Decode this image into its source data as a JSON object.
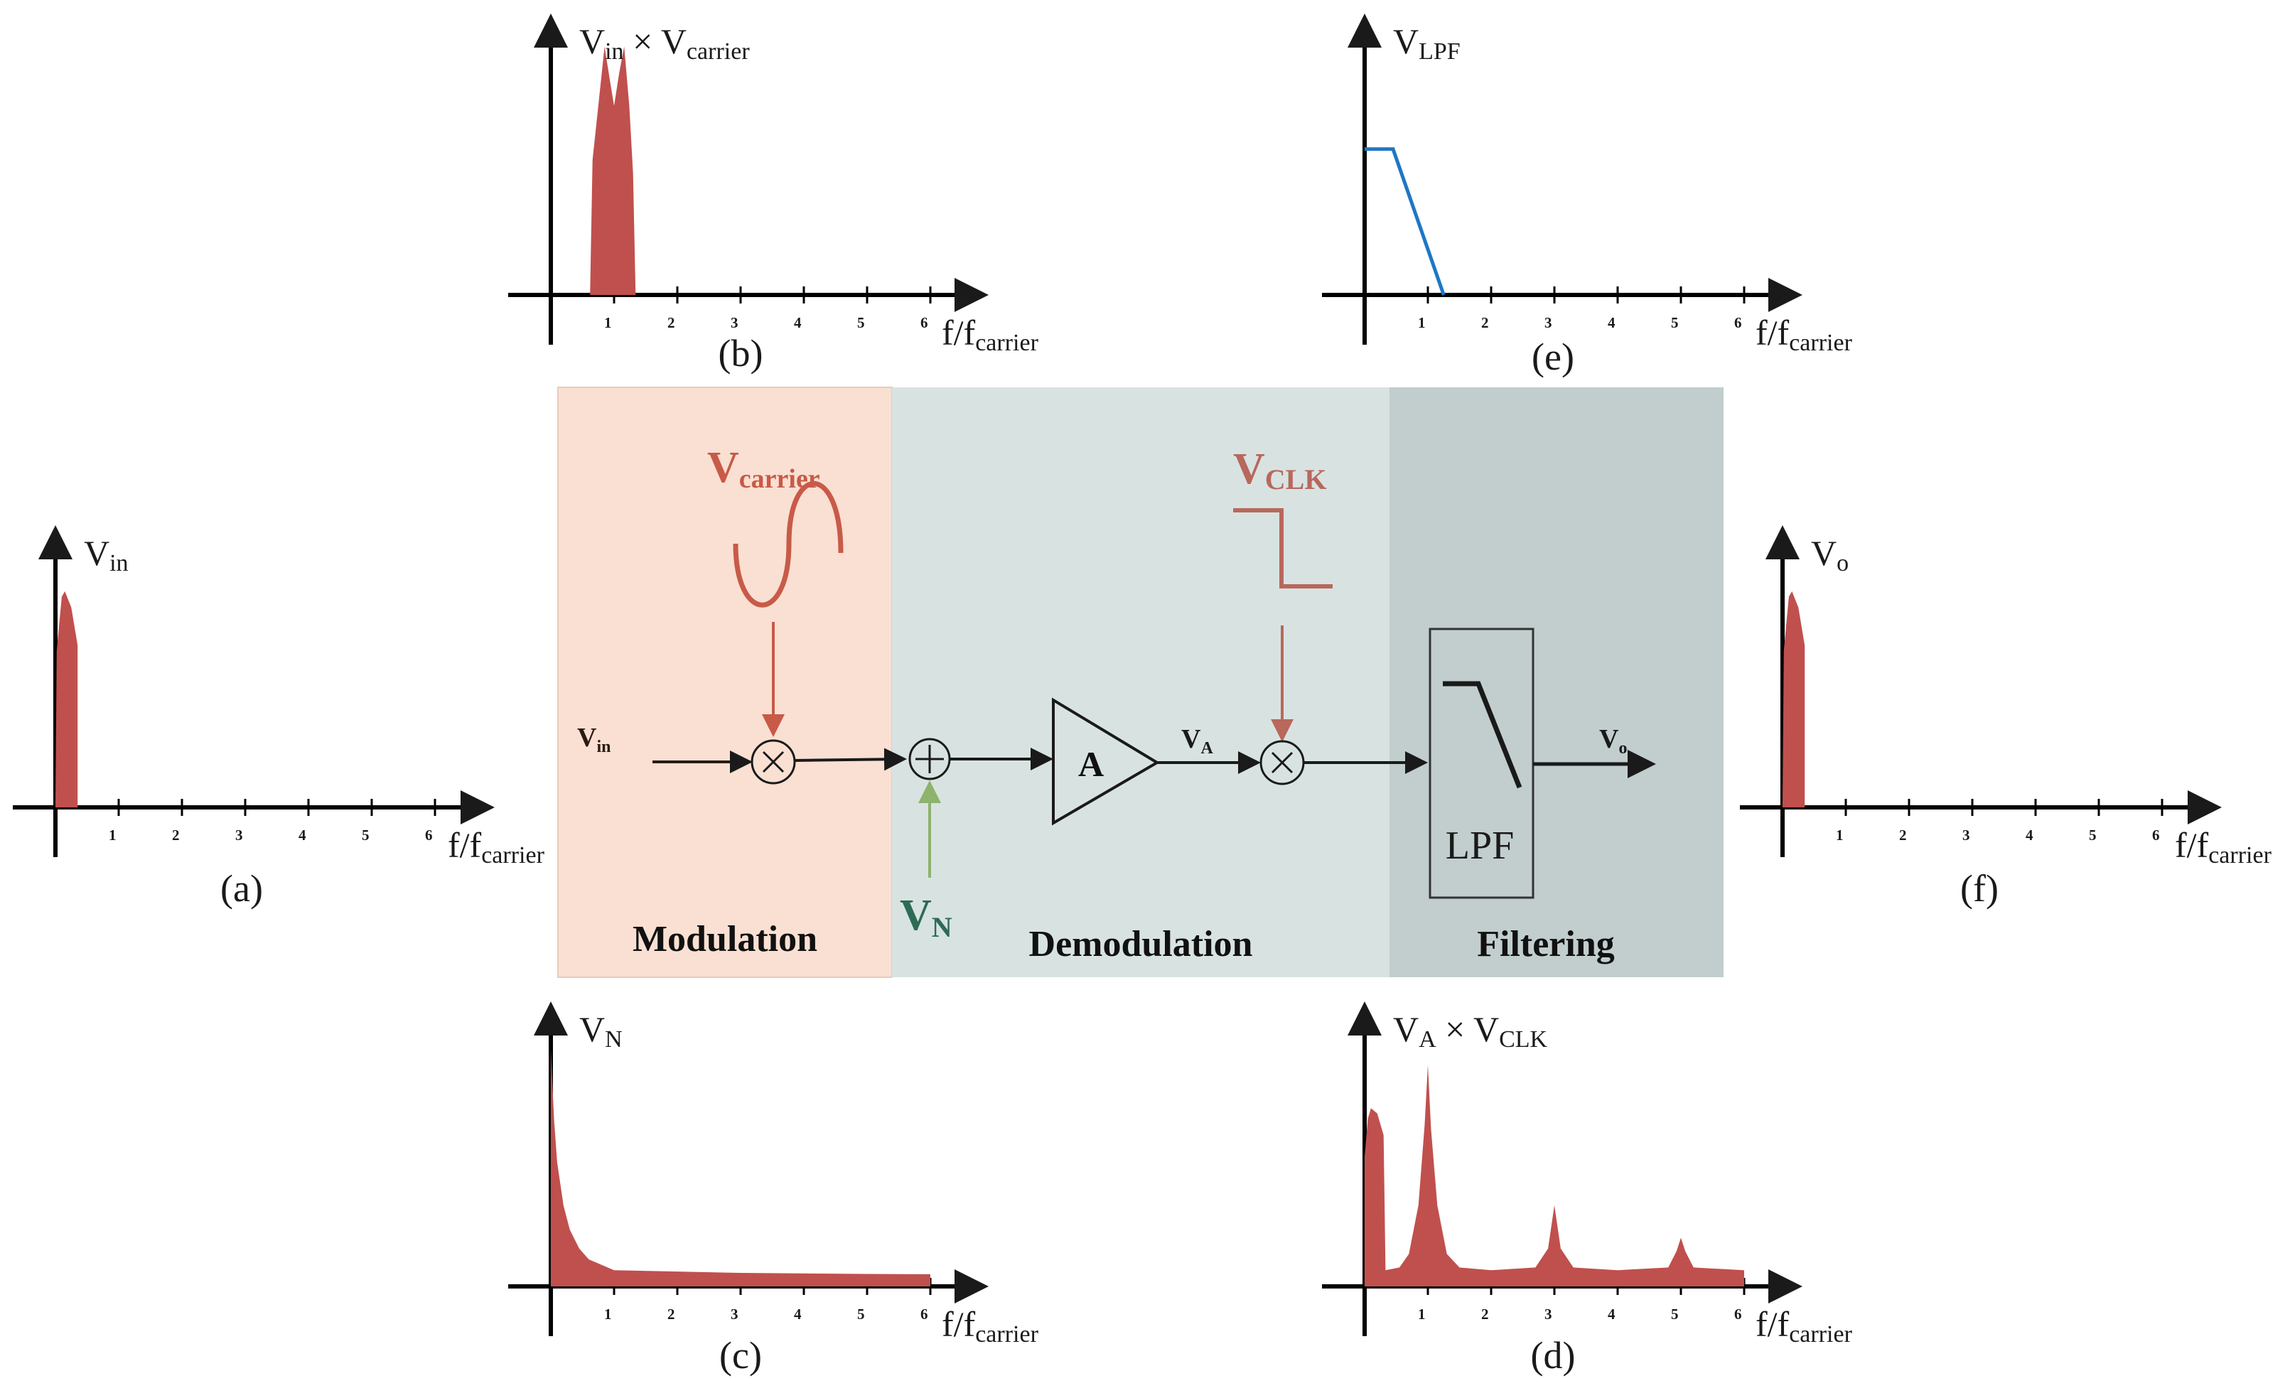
{
  "colors": {
    "spectrum": "#c0504d",
    "lpf_line": "#1f77c4",
    "mod_bg": "#f9e0d2",
    "demod_bg": "#d8e3e1",
    "filter_bg": "#c1cecd",
    "signal_red": "#c85a48",
    "noise_green": "#8db36c",
    "noise_text": "#2e6b55",
    "axis": "#000000"
  },
  "chart_data": [
    {
      "id": "a",
      "type": "area",
      "caption": "(a)",
      "title": "V",
      "title_sub": "in",
      "xlabel_main": "f/f",
      "xlabel_sub": "carrier",
      "x_ticks": [
        "1",
        "2",
        "3",
        "4",
        "5",
        "6"
      ],
      "ylim": [
        0,
        1
      ],
      "points": [
        [
          0.0,
          0.0
        ],
        [
          0.02,
          0.58
        ],
        [
          0.1,
          0.78
        ],
        [
          0.15,
          0.8
        ],
        [
          0.25,
          0.74
        ],
        [
          0.35,
          0.6
        ],
        [
          0.35,
          0.0
        ]
      ]
    },
    {
      "id": "b",
      "type": "area",
      "caption": "(b)",
      "title": "V",
      "title_sub": "in",
      "title_mid": "×",
      "title2": "V",
      "title2_sub": "carrier",
      "xlabel_main": "f/f",
      "xlabel_sub": "carrier",
      "x_ticks": [
        "1",
        "2",
        "3",
        "4",
        "5",
        "6"
      ],
      "ylim": [
        0,
        1
      ],
      "points": [
        [
          0.62,
          0.0
        ],
        [
          0.66,
          0.5
        ],
        [
          0.75,
          0.7
        ],
        [
          0.85,
          0.92
        ],
        [
          0.93,
          0.8
        ],
        [
          1.0,
          0.7
        ],
        [
          1.08,
          0.82
        ],
        [
          1.16,
          0.92
        ],
        [
          1.24,
          0.7
        ],
        [
          1.3,
          0.45
        ],
        [
          1.34,
          0.0
        ]
      ]
    },
    {
      "id": "c",
      "type": "area",
      "caption": "(c)",
      "title": "V",
      "title_sub": "N",
      "xlabel_main": "f/f",
      "xlabel_sub": "carrier",
      "x_ticks": [
        "1",
        "2",
        "3",
        "4",
        "5",
        "6"
      ],
      "ylim": [
        0,
        1
      ],
      "points": [
        [
          0.0,
          0.0
        ],
        [
          0.0,
          0.88
        ],
        [
          0.05,
          0.62
        ],
        [
          0.1,
          0.46
        ],
        [
          0.2,
          0.3
        ],
        [
          0.3,
          0.21
        ],
        [
          0.45,
          0.14
        ],
        [
          0.6,
          0.1
        ],
        [
          0.8,
          0.08
        ],
        [
          1.0,
          0.06
        ],
        [
          2.0,
          0.055
        ],
        [
          3.0,
          0.05
        ],
        [
          4.0,
          0.048
        ],
        [
          5.0,
          0.046
        ],
        [
          6.0,
          0.045
        ],
        [
          6.0,
          0.0
        ]
      ]
    },
    {
      "id": "d",
      "type": "area",
      "caption": "(d)",
      "title": "V",
      "title_sub": "A",
      "title_mid": "×",
      "title2": "V",
      "title2_sub": "CLK",
      "xlabel_main": "f/f",
      "xlabel_sub": "carrier",
      "x_ticks": [
        "1",
        "2",
        "3",
        "4",
        "5",
        "6"
      ],
      "ylim": [
        0,
        1
      ],
      "points": [
        [
          0.0,
          0.0
        ],
        [
          0.0,
          0.48
        ],
        [
          0.05,
          0.62
        ],
        [
          0.1,
          0.66
        ],
        [
          0.2,
          0.64
        ],
        [
          0.3,
          0.56
        ],
        [
          0.33,
          0.06
        ],
        [
          0.55,
          0.07
        ],
        [
          0.7,
          0.12
        ],
        [
          0.85,
          0.3
        ],
        [
          0.95,
          0.6
        ],
        [
          1.0,
          0.82
        ],
        [
          1.05,
          0.58
        ],
        [
          1.15,
          0.3
        ],
        [
          1.3,
          0.12
        ],
        [
          1.5,
          0.07
        ],
        [
          2.0,
          0.06
        ],
        [
          2.7,
          0.07
        ],
        [
          2.9,
          0.14
        ],
        [
          3.0,
          0.3
        ],
        [
          3.1,
          0.14
        ],
        [
          3.3,
          0.07
        ],
        [
          4.0,
          0.06
        ],
        [
          4.8,
          0.07
        ],
        [
          4.93,
          0.13
        ],
        [
          5.0,
          0.18
        ],
        [
          5.07,
          0.13
        ],
        [
          5.2,
          0.07
        ],
        [
          6.0,
          0.06
        ],
        [
          6.0,
          0.0
        ]
      ]
    },
    {
      "id": "e",
      "type": "line",
      "caption": "(e)",
      "title": "V",
      "title_sub": "LPF",
      "xlabel_main": "f/f",
      "xlabel_sub": "carrier",
      "x_ticks": [
        "1",
        "2",
        "3",
        "4",
        "5",
        "6"
      ],
      "ylim": [
        0,
        1
      ],
      "points": [
        [
          0.0,
          0.54
        ],
        [
          0.45,
          0.54
        ],
        [
          1.25,
          0.0
        ]
      ]
    },
    {
      "id": "f",
      "type": "area",
      "caption": "(f)",
      "title": "V",
      "title_sub": "o",
      "xlabel_main": "f/f",
      "xlabel_sub": "carrier",
      "x_ticks": [
        "1",
        "2",
        "3",
        "4",
        "5",
        "6"
      ],
      "ylim": [
        0,
        1
      ],
      "points": [
        [
          0.0,
          0.0
        ],
        [
          0.02,
          0.58
        ],
        [
          0.1,
          0.78
        ],
        [
          0.15,
          0.8
        ],
        [
          0.25,
          0.74
        ],
        [
          0.35,
          0.6
        ],
        [
          0.35,
          0.0
        ]
      ]
    }
  ],
  "block": {
    "sections": {
      "modulation": "Modulation",
      "demodulation": "Demodulation",
      "filtering": "Filtering"
    },
    "carrier_main": "V",
    "carrier_sub": "carrier",
    "clk_main": "V",
    "clk_sub": "CLK",
    "vin_main": "V",
    "vin_sub": "in",
    "noise_main": "V",
    "noise_sub": "N",
    "amp_label": "A",
    "va_main": "V",
    "va_sub": "A",
    "vo_main": "V",
    "vo_sub": "o",
    "lpf_label": "LPF"
  }
}
